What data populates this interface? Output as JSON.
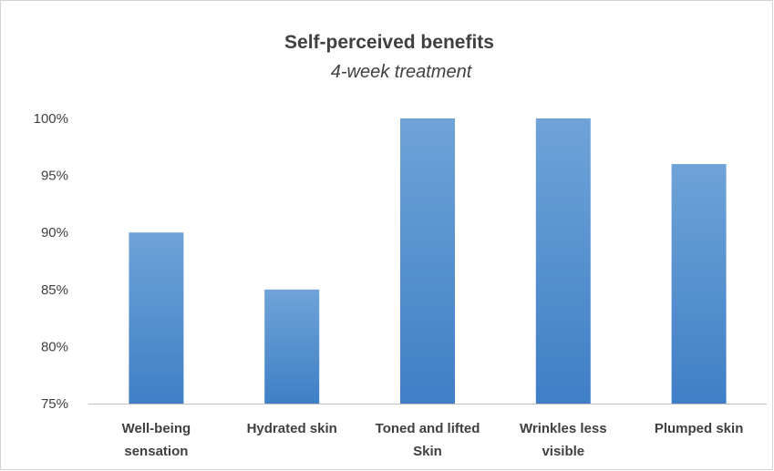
{
  "chart_data": {
    "type": "bar",
    "title": "Self-perceived benefits",
    "subtitle": "4-week treatment",
    "categories": [
      [
        "Well-being",
        "sensation"
      ],
      [
        "Hydrated skin"
      ],
      [
        "Toned and lifted",
        "Skin"
      ],
      [
        "Wrinkles less",
        "visible"
      ],
      [
        "Plumped skin"
      ]
    ],
    "values": [
      90,
      85,
      100,
      100,
      96
    ],
    "ylim": [
      75,
      100
    ],
    "yticks": [
      75,
      80,
      85,
      90,
      95,
      100
    ],
    "tick_suffix": "%",
    "grid": false,
    "bar_color_top": "#6fa3d8",
    "bar_color_bottom": "#3f7fc6",
    "axis_color": "#bfbfbf",
    "text_color": "#404040"
  }
}
